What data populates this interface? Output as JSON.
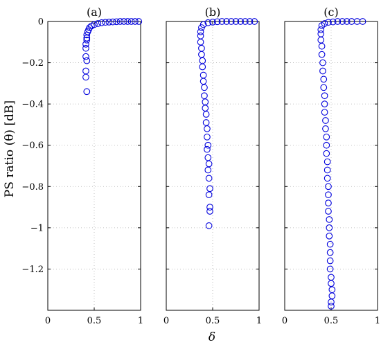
{
  "figure": {
    "ylabel": "PS ratio (θ) [dB]",
    "xlabel": "δ"
  },
  "chart_data": [
    {
      "type": "scatter",
      "title": "(a)",
      "xlim": [
        0,
        1
      ],
      "ylim": [
        -1.4,
        0
      ],
      "xticks": [
        "0",
        "0.5",
        "1"
      ],
      "yticks": [
        "0",
        "−0.2",
        "−0.4",
        "−0.6",
        "−0.8",
        "−1",
        "−1.2"
      ],
      "show_yticks": true,
      "grid": true,
      "marker": "circle",
      "color": "#0000dd",
      "points": [
        [
          0.42,
          -0.34
        ],
        [
          0.41,
          -0.27
        ],
        [
          0.41,
          -0.24
        ],
        [
          0.42,
          -0.19
        ],
        [
          0.41,
          -0.17
        ],
        [
          0.41,
          -0.13
        ],
        [
          0.41,
          -0.11
        ],
        [
          0.42,
          -0.09
        ],
        [
          0.42,
          -0.08
        ],
        [
          0.42,
          -0.065
        ],
        [
          0.43,
          -0.05
        ],
        [
          0.44,
          -0.04
        ],
        [
          0.45,
          -0.03
        ],
        [
          0.47,
          -0.022
        ],
        [
          0.5,
          -0.015
        ],
        [
          0.54,
          -0.01
        ],
        [
          0.58,
          -0.006
        ],
        [
          0.62,
          -0.004
        ],
        [
          0.66,
          -0.003
        ],
        [
          0.7,
          -0.002
        ],
        [
          0.74,
          -0.001
        ],
        [
          0.78,
          0
        ],
        [
          0.82,
          0
        ],
        [
          0.86,
          0
        ],
        [
          0.9,
          0
        ],
        [
          0.94,
          0
        ],
        [
          0.98,
          0
        ]
      ]
    },
    {
      "type": "scatter",
      "title": "(b)",
      "xlim": [
        0,
        1
      ],
      "ylim": [
        -1.4,
        0
      ],
      "xticks": [
        "0",
        "0.5",
        "1"
      ],
      "yticks": [],
      "show_yticks": false,
      "grid": true,
      "marker": "circle",
      "color": "#0000dd",
      "points": [
        [
          0.46,
          -0.99
        ],
        [
          0.47,
          -0.92
        ],
        [
          0.47,
          -0.9
        ],
        [
          0.46,
          -0.84
        ],
        [
          0.47,
          -0.81
        ],
        [
          0.46,
          -0.76
        ],
        [
          0.45,
          -0.72
        ],
        [
          0.46,
          -0.69
        ],
        [
          0.45,
          -0.66
        ],
        [
          0.44,
          -0.62
        ],
        [
          0.45,
          -0.6
        ],
        [
          0.44,
          -0.56
        ],
        [
          0.44,
          -0.52
        ],
        [
          0.43,
          -0.49
        ],
        [
          0.43,
          -0.45
        ],
        [
          0.42,
          -0.42
        ],
        [
          0.42,
          -0.39
        ],
        [
          0.41,
          -0.36
        ],
        [
          0.41,
          -0.32
        ],
        [
          0.4,
          -0.29
        ],
        [
          0.4,
          -0.26
        ],
        [
          0.39,
          -0.22
        ],
        [
          0.39,
          -0.19
        ],
        [
          0.38,
          -0.16
        ],
        [
          0.38,
          -0.13
        ],
        [
          0.37,
          -0.1
        ],
        [
          0.37,
          -0.07
        ],
        [
          0.37,
          -0.05
        ],
        [
          0.38,
          -0.03
        ],
        [
          0.4,
          -0.015
        ],
        [
          0.45,
          -0.006
        ],
        [
          0.5,
          -0.003
        ],
        [
          0.55,
          -0.001
        ],
        [
          0.6,
          0
        ],
        [
          0.65,
          0
        ],
        [
          0.7,
          0
        ],
        [
          0.75,
          0
        ],
        [
          0.8,
          0
        ],
        [
          0.85,
          0
        ],
        [
          0.9,
          0
        ],
        [
          0.95,
          0
        ]
      ]
    },
    {
      "type": "scatter",
      "title": "(c)",
      "xlim": [
        0,
        1
      ],
      "ylim": [
        -1.4,
        0
      ],
      "xticks": [
        "0",
        "0.5",
        "1"
      ],
      "yticks": [],
      "show_yticks": false,
      "grid": true,
      "marker": "circle",
      "color": "#0000dd",
      "points": [
        [
          0.5,
          -1.38
        ],
        [
          0.5,
          -1.36
        ],
        [
          0.51,
          -1.33
        ],
        [
          0.51,
          -1.3
        ],
        [
          0.5,
          -1.27
        ],
        [
          0.5,
          -1.24
        ],
        [
          0.49,
          -1.2
        ],
        [
          0.49,
          -1.16
        ],
        [
          0.49,
          -1.12
        ],
        [
          0.49,
          -1.08
        ],
        [
          0.48,
          -1.04
        ],
        [
          0.48,
          -1.0
        ],
        [
          0.48,
          -0.96
        ],
        [
          0.47,
          -0.92
        ],
        [
          0.47,
          -0.88
        ],
        [
          0.47,
          -0.84
        ],
        [
          0.47,
          -0.8
        ],
        [
          0.46,
          -0.76
        ],
        [
          0.46,
          -0.72
        ],
        [
          0.46,
          -0.68
        ],
        [
          0.45,
          -0.64
        ],
        [
          0.45,
          -0.6
        ],
        [
          0.45,
          -0.56
        ],
        [
          0.44,
          -0.52
        ],
        [
          0.44,
          -0.48
        ],
        [
          0.43,
          -0.44
        ],
        [
          0.43,
          -0.4
        ],
        [
          0.43,
          -0.36
        ],
        [
          0.42,
          -0.32
        ],
        [
          0.42,
          -0.28
        ],
        [
          0.41,
          -0.24
        ],
        [
          0.41,
          -0.2
        ],
        [
          0.4,
          -0.16
        ],
        [
          0.4,
          -0.12
        ],
        [
          0.39,
          -0.09
        ],
        [
          0.39,
          -0.06
        ],
        [
          0.39,
          -0.04
        ],
        [
          0.4,
          -0.02
        ],
        [
          0.43,
          -0.01
        ],
        [
          0.47,
          -0.004
        ],
        [
          0.52,
          -0.002
        ],
        [
          0.57,
          0
        ],
        [
          0.62,
          0
        ],
        [
          0.67,
          0
        ],
        [
          0.72,
          0
        ],
        [
          0.78,
          0
        ],
        [
          0.84,
          0
        ]
      ]
    }
  ]
}
